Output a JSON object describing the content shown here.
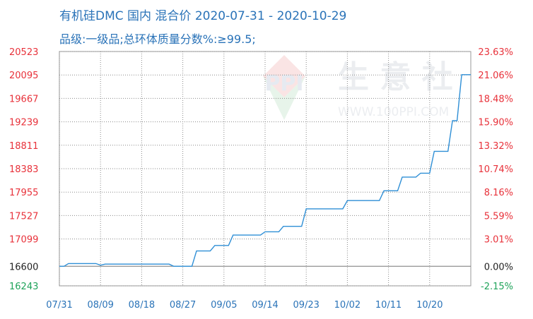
{
  "title": {
    "line1": "有机硅DMC 国内 混合价 2020-07-31 - 2020-10-29",
    "line2": "品级:一级品;总环体质量分数%:≥99.5;"
  },
  "watermark": {
    "brand": "生 意 社",
    "logo": "PPI",
    "url": "WWW.100PPI.COM"
  },
  "colors": {
    "line": "#2f8fd6",
    "left_axis_text": "#e8313a",
    "right_axis_text": "#e8313a",
    "base_text": "#222222",
    "negative_text": "#1fa35a",
    "x_axis_text": "#2a73b8",
    "title_text": "#2a73b8"
  },
  "chart_data": {
    "type": "line",
    "title": "有机硅DMC 国内 混合价 2020-07-31 - 2020-10-29",
    "subtitle": "品级:一级品;总环体质量分数%:≥99.5;",
    "xlabel": "",
    "ylabel": "",
    "grid": true,
    "x_tick_labels": [
      "07/31",
      "08/09",
      "08/18",
      "08/27",
      "09/05",
      "09/14",
      "09/23",
      "10/02",
      "10/11",
      "10/20"
    ],
    "y_left_ticks": [
      "20523",
      "20095",
      "19667",
      "19239",
      "18811",
      "18383",
      "17955",
      "17527",
      "17099",
      "16600",
      "16243"
    ],
    "y_right_ticks": [
      "23.63%",
      "21.06%",
      "18.48%",
      "15.90%",
      "13.32%",
      "10.74%",
      "8.16%",
      "5.59%",
      "3.01%",
      "0.00%",
      "-2.15%"
    ],
    "ylim": [
      16243,
      20523
    ],
    "ylim_right": [
      -2.15,
      23.63
    ],
    "base_value": 16600,
    "series": [
      {
        "x": [
          "07/31",
          "08/01",
          "08/02",
          "08/08",
          "08/09",
          "08/10",
          "08/24",
          "08/25",
          "08/29",
          "08/30",
          "09/02",
          "09/03",
          "09/06",
          "09/07",
          "09/13",
          "09/14",
          "09/17",
          "09/18",
          "09/22",
          "09/23",
          "10/01",
          "10/02",
          "10/09",
          "10/10",
          "10/13",
          "10/14",
          "10/17",
          "10/18",
          "10/20",
          "10/21",
          "10/24",
          "10/25",
          "10/26",
          "10/27",
          "10/29"
        ],
        "values": [
          16600,
          16600,
          16650,
          16650,
          16620,
          16640,
          16640,
          16600,
          16600,
          16880,
          16880,
          16980,
          16980,
          17170,
          17170,
          17230,
          17230,
          17330,
          17330,
          17650,
          17650,
          17800,
          17800,
          17980,
          17980,
          18230,
          18230,
          18300,
          18300,
          18700,
          18700,
          19260,
          19260,
          20100,
          20100
        ]
      }
    ]
  }
}
